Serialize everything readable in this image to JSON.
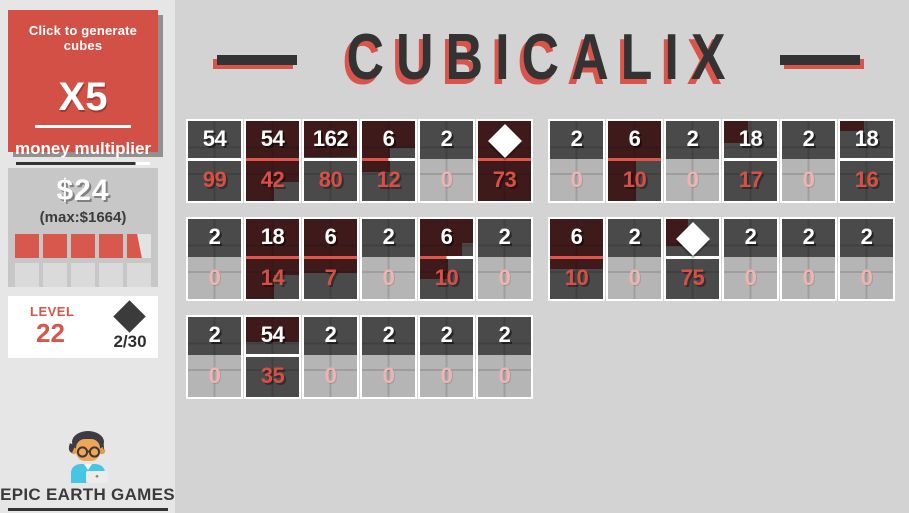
{
  "title": {
    "text": "CUBICALIX"
  },
  "sidebar": {
    "generate_button": {
      "label": "Click to generate cubes",
      "multiplier": "X5",
      "sub_label": "money multiplier"
    },
    "money": {
      "amount": "$24",
      "max_label": "(max:$1664)",
      "progress_cells": [
        "full",
        "full",
        "full",
        "full",
        "partial",
        "empty",
        "empty",
        "empty",
        "empty",
        "empty"
      ]
    },
    "level": {
      "label": "LEVEL",
      "value": "22",
      "gem_progress": "2/30"
    },
    "brand": {
      "name": "EPIC EARTH GAMES",
      "mascot_icon": "developer-avatar"
    }
  },
  "colors": {
    "button_red": "#d25046",
    "card_dark": "#4a4a4a",
    "card_inactive": "#b5b5b5",
    "cube_maroon": "#3f1a1b",
    "separator_red": "#e0554a",
    "number_red": "#d94f44",
    "number_pale": "#f0b4b0",
    "title_dark": "#333333",
    "title_shadow_red": "#d9544a"
  },
  "chart_data": {
    "type": "table",
    "description": "Cube cards: top = cube value (white), bottom = count (red); diamond = gem card; fill rects show maroon cube stack coverage in % of card",
    "groups": [
      [
        {
          "top": "54",
          "bottom": "99",
          "state": "active",
          "sep": "white",
          "diamond": false,
          "fill": []
        },
        {
          "top": "54",
          "bottom": "42",
          "state": "active",
          "sep": "red",
          "diamond": false,
          "fill": [
            [
              0,
              0,
              100,
              76
            ],
            [
              0,
              76,
              52,
              24
            ]
          ]
        },
        {
          "top": "162",
          "bottom": "80",
          "state": "active",
          "sep": "white",
          "diamond": false,
          "fill": [
            [
              0,
              0,
              100,
              45
            ]
          ]
        },
        {
          "top": "6",
          "bottom": "12",
          "state": "active",
          "sep": "mix",
          "diamond": false,
          "fill": [
            [
              0,
              0,
              100,
              34
            ],
            [
              0,
              34,
              52,
              30
            ]
          ]
        },
        {
          "top": "2",
          "bottom": "0",
          "state": "inactive",
          "sep": "none",
          "diamond": false,
          "fill": []
        },
        {
          "top": "",
          "bottom": "73",
          "state": "active",
          "sep": "red",
          "diamond": true,
          "fill": [
            [
              0,
              0,
              100,
              100
            ]
          ]
        }
      ],
      [
        {
          "top": "2",
          "bottom": "0",
          "state": "inactive",
          "sep": "none",
          "diamond": false,
          "fill": []
        },
        {
          "top": "6",
          "bottom": "10",
          "state": "active",
          "sep": "red",
          "diamond": false,
          "fill": [
            [
              0,
              0,
              100,
              47
            ],
            [
              0,
              47,
              52,
              53
            ]
          ]
        },
        {
          "top": "2",
          "bottom": "0",
          "state": "inactive",
          "sep": "none",
          "diamond": false,
          "fill": []
        },
        {
          "top": "18",
          "bottom": "17",
          "state": "active",
          "sep": "white",
          "diamond": false,
          "fill": [
            [
              0,
              0,
              46,
              28
            ]
          ]
        },
        {
          "top": "2",
          "bottom": "0",
          "state": "inactive",
          "sep": "none",
          "diamond": false,
          "fill": []
        },
        {
          "top": "18",
          "bottom": "16",
          "state": "active",
          "sep": "white",
          "diamond": false,
          "fill": [
            [
              0,
              0,
              46,
              13
            ]
          ]
        }
      ],
      [
        {
          "top": "2",
          "bottom": "0",
          "state": "inactive",
          "sep": "none",
          "diamond": false,
          "fill": []
        },
        {
          "top": "18",
          "bottom": "14",
          "state": "active",
          "sep": "red",
          "diamond": false,
          "fill": [
            [
              0,
              0,
              100,
              70
            ],
            [
              0,
              70,
              52,
              30
            ]
          ]
        },
        {
          "top": "6",
          "bottom": "7",
          "state": "active",
          "sep": "red",
          "diamond": false,
          "fill": [
            [
              0,
              0,
              100,
              68
            ]
          ]
        },
        {
          "top": "2",
          "bottom": "0",
          "state": "inactive",
          "sep": "none",
          "diamond": false,
          "fill": []
        },
        {
          "top": "6",
          "bottom": "10",
          "state": "active",
          "sep": "mix",
          "diamond": false,
          "fill": [
            [
              0,
              0,
              100,
              30
            ],
            [
              0,
              30,
              52,
              45
            ],
            [
              52,
              30,
              28,
              18
            ]
          ]
        },
        {
          "top": "2",
          "bottom": "0",
          "state": "inactive",
          "sep": "none",
          "diamond": false,
          "fill": []
        }
      ],
      [
        {
          "top": "6",
          "bottom": "10",
          "state": "active",
          "sep": "red",
          "diamond": false,
          "fill": [
            [
              0,
              0,
              100,
              63
            ]
          ]
        },
        {
          "top": "2",
          "bottom": "0",
          "state": "inactive",
          "sep": "none",
          "diamond": false,
          "fill": []
        },
        {
          "top": "",
          "bottom": "75",
          "state": "active",
          "sep": "white",
          "diamond": true,
          "fill": [
            [
              0,
              0,
              42,
              34
            ]
          ]
        },
        {
          "top": "2",
          "bottom": "0",
          "state": "inactive",
          "sep": "none",
          "diamond": false,
          "fill": []
        },
        {
          "top": "2",
          "bottom": "0",
          "state": "inactive",
          "sep": "none",
          "diamond": false,
          "fill": []
        },
        {
          "top": "2",
          "bottom": "0",
          "state": "inactive",
          "sep": "none",
          "diamond": false,
          "fill": []
        }
      ],
      [
        {
          "top": "2",
          "bottom": "0",
          "state": "inactive",
          "sep": "none",
          "diamond": false,
          "fill": []
        },
        {
          "top": "54",
          "bottom": "35",
          "state": "active",
          "sep": "white",
          "diamond": false,
          "fill": [
            [
              0,
              0,
              100,
              31
            ]
          ]
        },
        {
          "top": "2",
          "bottom": "0",
          "state": "inactive",
          "sep": "none",
          "diamond": false,
          "fill": []
        },
        {
          "top": "2",
          "bottom": "0",
          "state": "inactive",
          "sep": "none",
          "diamond": false,
          "fill": []
        },
        {
          "top": "2",
          "bottom": "0",
          "state": "inactive",
          "sep": "none",
          "diamond": false,
          "fill": []
        },
        {
          "top": "2",
          "bottom": "0",
          "state": "inactive",
          "sep": "none",
          "diamond": false,
          "fill": []
        }
      ]
    ]
  }
}
